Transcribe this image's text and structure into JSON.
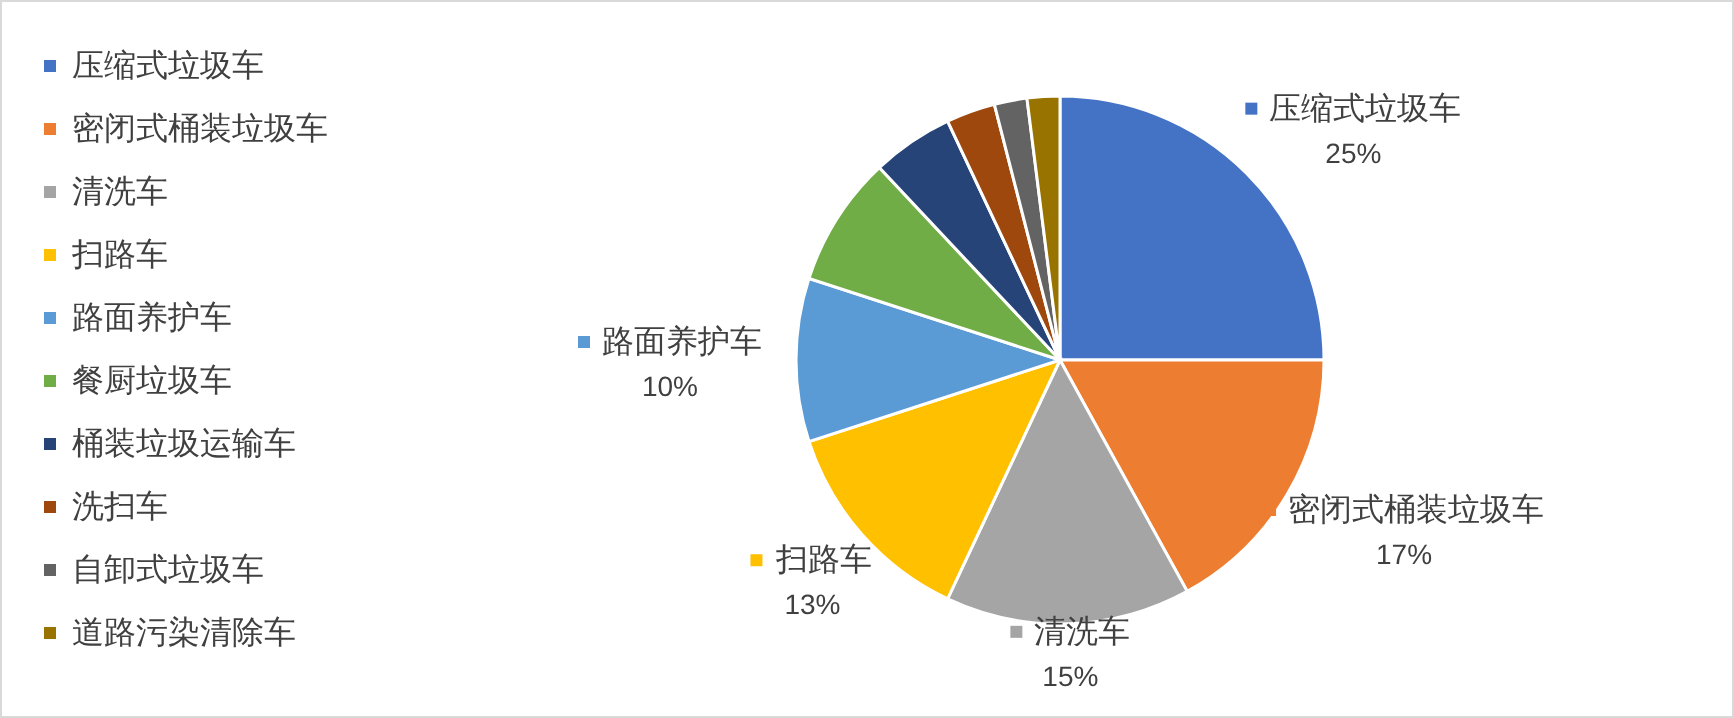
{
  "chart_data": {
    "type": "pie",
    "categories": [
      "压缩式垃圾车",
      "密闭式桶装垃圾车",
      "清洗车",
      "扫路车",
      "路面养护车",
      "餐厨垃圾车",
      "桶装垃圾运输车",
      "洗扫车",
      "自卸式垃圾车",
      "道路污染清除车"
    ],
    "values": [
      25,
      17,
      15,
      13,
      10,
      8,
      5,
      3,
      2,
      2
    ],
    "colors": [
      "#4472c4",
      "#ed7d31",
      "#a5a5a5",
      "#ffc000",
      "#5b9bd5",
      "#70ad47",
      "#264478",
      "#9e480e",
      "#636363",
      "#997300"
    ],
    "value_labels": [
      "25%",
      "17%",
      "15%",
      "13%",
      "10%",
      null,
      null,
      null,
      null,
      null
    ],
    "legend": "left"
  }
}
